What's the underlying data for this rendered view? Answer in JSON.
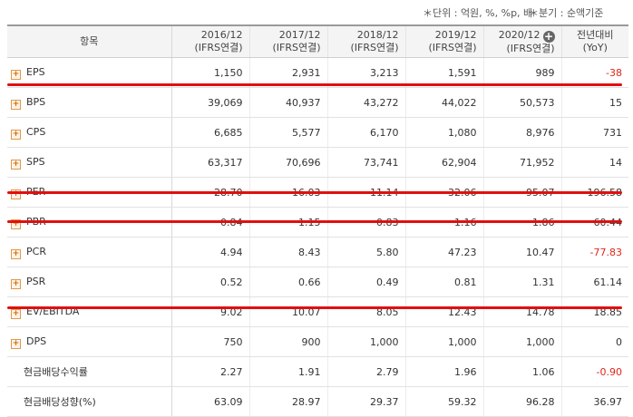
{
  "notes": {
    "unit": "＊단위 : 억원, %, %p, 배",
    "basis": "＊분기 : 순액기준"
  },
  "header": {
    "item": "항목",
    "years": [
      {
        "year": "2016/12",
        "basis": "(IFRS연결)"
      },
      {
        "year": "2017/12",
        "basis": "(IFRS연결)"
      },
      {
        "year": "2018/12",
        "basis": "(IFRS연결)"
      },
      {
        "year": "2019/12",
        "basis": "(IFRS연결)"
      },
      {
        "year": "2020/12",
        "basis": "(IFRS연결)"
      }
    ],
    "yoy": {
      "line1": "전년대비",
      "line2": "(YoY)"
    }
  },
  "rows": [
    {
      "label": "EPS",
      "expand": true,
      "v": [
        "1,150",
        "2,931",
        "3,213",
        "1,591",
        "989"
      ],
      "yoy": "-38",
      "neg": true
    },
    {
      "label": "BPS",
      "expand": true,
      "v": [
        "39,069",
        "40,937",
        "43,272",
        "44,022",
        "50,573"
      ],
      "yoy": "15",
      "neg": false
    },
    {
      "label": "CPS",
      "expand": true,
      "v": [
        "6,685",
        "5,577",
        "6,170",
        "1,080",
        "8,976"
      ],
      "yoy": "731",
      "neg": false
    },
    {
      "label": "SPS",
      "expand": true,
      "v": [
        "63,317",
        "70,696",
        "73,741",
        "62,904",
        "71,952"
      ],
      "yoy": "14",
      "neg": false
    },
    {
      "label": "PER",
      "expand": true,
      "v": [
        "28.70",
        "16.03",
        "11.14",
        "32.06",
        "95.07"
      ],
      "yoy": "196.58",
      "neg": false
    },
    {
      "label": "PBR",
      "expand": true,
      "v": [
        "0.84",
        "1.15",
        "0.83",
        "1.16",
        "1.86"
      ],
      "yoy": "60.44",
      "neg": false
    },
    {
      "label": "PCR",
      "expand": true,
      "v": [
        "4.94",
        "8.43",
        "5.80",
        "47.23",
        "10.47"
      ],
      "yoy": "-77.83",
      "neg": true
    },
    {
      "label": "PSR",
      "expand": true,
      "v": [
        "0.52",
        "0.66",
        "0.49",
        "0.81",
        "1.31"
      ],
      "yoy": "61.14",
      "neg": false
    },
    {
      "label": "EV/EBITDA",
      "expand": true,
      "v": [
        "9.02",
        "10.07",
        "8.05",
        "12.43",
        "14.78"
      ],
      "yoy": "18.85",
      "neg": false
    },
    {
      "label": "DPS",
      "expand": true,
      "v": [
        "750",
        "900",
        "1,000",
        "1,000",
        "1,000"
      ],
      "yoy": "0",
      "neg": false
    },
    {
      "label": "현금배당수익률",
      "expand": false,
      "v": [
        "2.27",
        "1.91",
        "2.79",
        "1.96",
        "1.06"
      ],
      "yoy": "-0.90",
      "neg": true
    },
    {
      "label": "현금배당성향(%)",
      "expand": false,
      "v": [
        "63.09",
        "28.97",
        "29.37",
        "59.32",
        "96.28"
      ],
      "yoy": "36.97",
      "neg": false
    }
  ],
  "colors": {
    "highlight": "#e10f0f",
    "negative": "#e0261b",
    "expand_icon": "#d26a00"
  }
}
